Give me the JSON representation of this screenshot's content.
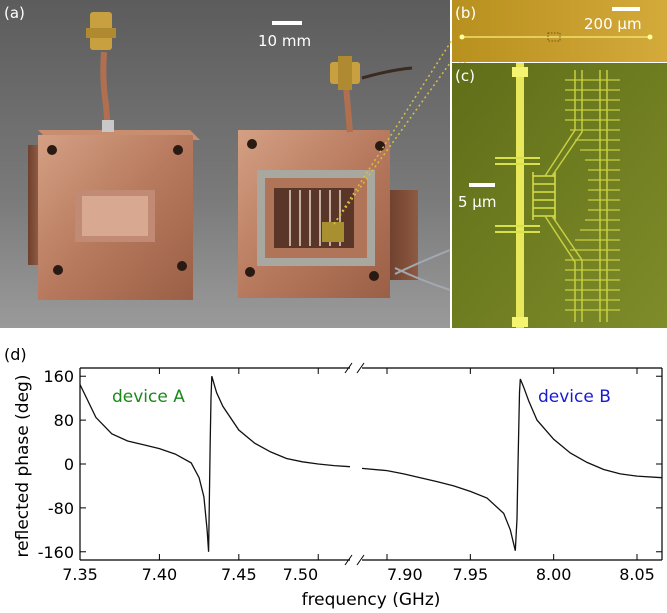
{
  "panels": {
    "a": {
      "label": "(a)",
      "scale_bar": "10 mm"
    },
    "b": {
      "label": "(b)",
      "scale_bar": "200 μm"
    },
    "c": {
      "label": "(c)",
      "scale_bar": "5 μm"
    },
    "d": {
      "label": "(d)"
    }
  },
  "colors": {
    "photo_bg": "#6b6b6b",
    "copper": "#b87a5e",
    "copper_dark": "#7a4c38",
    "copper_light": "#d9a488",
    "chip_gold": "#c9a02a",
    "micro_bg": "#6b7a1e",
    "micro_line": "#e6e84a",
    "device_a_color": "#1a8a1a",
    "device_b_color": "#1a1ad0",
    "trace": "#111111"
  },
  "chart_data": {
    "type": "line",
    "xlabel": "frequency (GHz)",
    "ylabel": "reflected phase (deg)",
    "ylim": [
      -175,
      175
    ],
    "y_ticks": [
      160,
      80,
      0,
      -80,
      -160
    ],
    "y_tick_labels": [
      "160",
      "80",
      "0",
      "-80",
      "-160"
    ],
    "broken_x_axis": true,
    "segments": [
      {
        "xlim": [
          7.35,
          7.52
        ],
        "x_ticks": [
          7.35,
          7.4,
          7.45,
          7.5
        ],
        "x_tick_labels": [
          "7.35",
          "7.40",
          "7.45",
          "7.50"
        ]
      },
      {
        "xlim": [
          7.885,
          8.065
        ],
        "x_ticks": [
          7.9,
          7.95,
          8.0,
          8.05
        ],
        "x_tick_labels": [
          "7.90",
          "7.95",
          "8.00",
          "8.05"
        ]
      }
    ],
    "series": [
      {
        "name": "device A",
        "segment": 0,
        "x": [
          7.35,
          7.36,
          7.37,
          7.38,
          7.39,
          7.4,
          7.41,
          7.42,
          7.425,
          7.428,
          7.43,
          7.431,
          7.4315,
          7.432,
          7.4325,
          7.433,
          7.434,
          7.436,
          7.44,
          7.45,
          7.46,
          7.47,
          7.48,
          7.49,
          7.5,
          7.51,
          7.52
        ],
        "y": [
          145,
          85,
          55,
          42,
          35,
          28,
          18,
          2,
          -25,
          -60,
          -120,
          -160,
          -60,
          40,
          120,
          160,
          150,
          130,
          105,
          62,
          38,
          22,
          10,
          4,
          0,
          -3,
          -5
        ]
      },
      {
        "name": "device B",
        "segment": 1,
        "x": [
          7.885,
          7.9,
          7.91,
          7.92,
          7.93,
          7.94,
          7.95,
          7.96,
          7.97,
          7.974,
          7.977,
          7.978,
          7.9785,
          7.979,
          7.9795,
          7.98,
          7.982,
          7.985,
          7.99,
          8.0,
          8.01,
          8.02,
          8.03,
          8.04,
          8.05,
          8.065
        ],
        "y": [
          -8,
          -12,
          -18,
          -25,
          -32,
          -40,
          -50,
          -62,
          -90,
          -120,
          -158,
          -100,
          -20,
          60,
          130,
          155,
          140,
          115,
          80,
          45,
          20,
          3,
          -10,
          -18,
          -22,
          -25
        ]
      }
    ],
    "annotations": [
      {
        "text": "device A",
        "series": "device A"
      },
      {
        "text": "device B",
        "series": "device B"
      }
    ]
  }
}
